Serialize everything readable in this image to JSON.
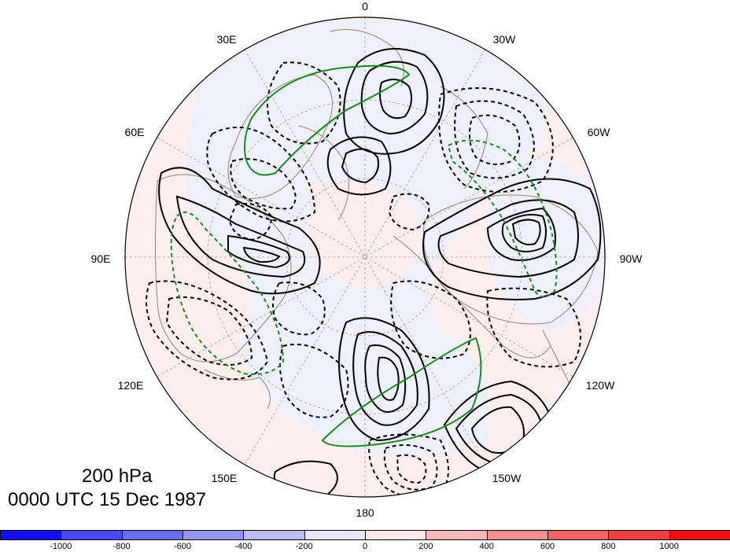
{
  "map": {
    "projection": "north-polar-stereographic",
    "background_anomaly_colors": {
      "negative": "#eef0fb",
      "positive": "#fcefed"
    },
    "contour_styles": {
      "positive": "solid black",
      "negative": "dashed black",
      "highlight": "green"
    },
    "longitude_labels": [
      {
        "id": "lon-0",
        "text": "0"
      },
      {
        "id": "lon-30w",
        "text": "30W"
      },
      {
        "id": "lon-60w",
        "text": "60W"
      },
      {
        "id": "lon-90w",
        "text": "90W"
      },
      {
        "id": "lon-120w",
        "text": "120W"
      },
      {
        "id": "lon-150w",
        "text": "150W"
      },
      {
        "id": "lon-180",
        "text": "180"
      },
      {
        "id": "lon-150e",
        "text": "150E"
      },
      {
        "id": "lon-120e",
        "text": "120E"
      },
      {
        "id": "lon-90e",
        "text": "90E"
      },
      {
        "id": "lon-60e",
        "text": "60E"
      },
      {
        "id": "lon-30e",
        "text": "30E"
      }
    ]
  },
  "title": {
    "level": "200 hPa",
    "time": "0000 UTC 15 Dec 1987"
  },
  "colorbar": {
    "colors": [
      "#1010f0",
      "#4848f0",
      "#6c6cf0",
      "#9494f2",
      "#bcbcf6",
      "#e6e6fa",
      "#fce8e8",
      "#f8b8b8",
      "#f49090",
      "#f06464",
      "#ee4242",
      "#f01010"
    ],
    "tick_labels": [
      "-1000",
      "-800",
      "-600",
      "-400",
      "-200",
      "0",
      "200",
      "400",
      "600",
      "800",
      "1000"
    ]
  }
}
